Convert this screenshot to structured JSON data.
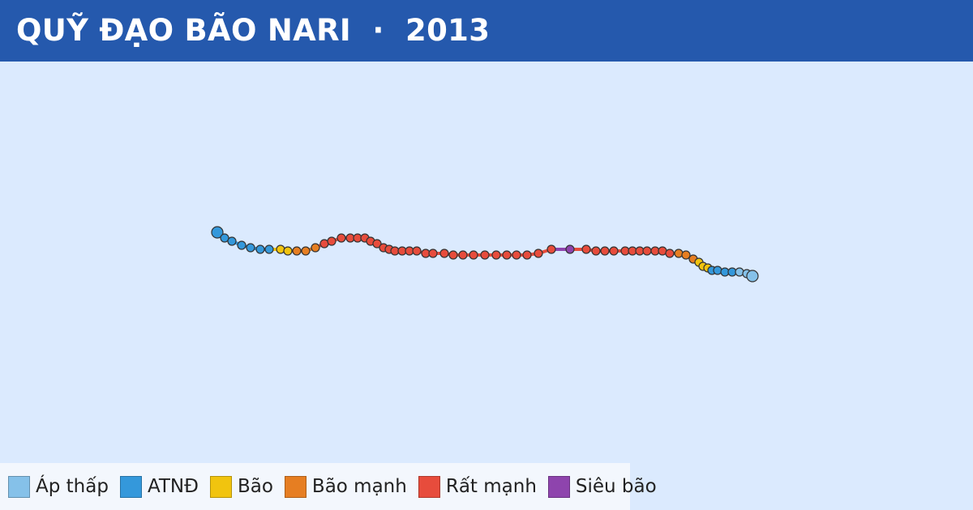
{
  "header": {
    "title": "QUỸ ĐẠO BÃO NARI  ·  2013",
    "background": "#2559ad"
  },
  "map": {
    "background": "#dbeafe",
    "track_colors": {
      "depression": "#85c1e9",
      "tropical_storm": "#3498db",
      "storm": "#f1c40f",
      "strong_storm": "#e67e22",
      "very_strong": "#e74c3c",
      "super_typhoon": "#8e44ad"
    },
    "track_points": [
      {
        "c": "tropical_storm"
      },
      {
        "c": "tropical_storm"
      },
      {
        "c": "tropical_storm"
      },
      {
        "c": "tropical_storm"
      },
      {
        "c": "tropical_storm"
      },
      {
        "c": "tropical_storm"
      },
      {
        "c": "tropical_storm"
      },
      {
        "c": "storm"
      },
      {
        "c": "storm"
      },
      {
        "c": "strong_storm"
      },
      {
        "c": "strong_storm"
      },
      {
        "c": "strong_storm"
      },
      {
        "c": "very_strong"
      },
      {
        "c": "very_strong"
      },
      {
        "c": "very_strong"
      },
      {
        "c": "very_strong"
      },
      {
        "c": "very_strong"
      },
      {
        "c": "very_strong"
      },
      {
        "c": "very_strong"
      },
      {
        "c": "very_strong"
      },
      {
        "c": "very_strong"
      },
      {
        "c": "very_strong"
      },
      {
        "c": "very_strong"
      },
      {
        "c": "very_strong"
      },
      {
        "c": "very_strong"
      },
      {
        "c": "very_strong"
      },
      {
        "c": "very_strong"
      },
      {
        "c": "very_strong"
      },
      {
        "c": "very_strong"
      },
      {
        "c": "very_strong"
      },
      {
        "c": "very_strong"
      },
      {
        "c": "very_strong"
      },
      {
        "c": "very_strong"
      },
      {
        "c": "very_strong"
      },
      {
        "c": "very_strong"
      },
      {
        "c": "very_strong"
      },
      {
        "c": "very_strong"
      },
      {
        "c": "very_strong"
      },
      {
        "c": "very_strong"
      },
      {
        "c": "super_typhoon"
      },
      {
        "c": "very_strong"
      },
      {
        "c": "very_strong"
      },
      {
        "c": "very_strong"
      },
      {
        "c": "very_strong"
      },
      {
        "c": "very_strong"
      },
      {
        "c": "very_strong"
      },
      {
        "c": "very_strong"
      },
      {
        "c": "very_strong"
      },
      {
        "c": "very_strong"
      },
      {
        "c": "very_strong"
      },
      {
        "c": "very_strong"
      },
      {
        "c": "strong_storm"
      },
      {
        "c": "strong_storm"
      },
      {
        "c": "strong_storm"
      },
      {
        "c": "storm"
      },
      {
        "c": "storm"
      },
      {
        "c": "storm"
      },
      {
        "c": "tropical_storm"
      },
      {
        "c": "tropical_storm"
      },
      {
        "c": "tropical_storm"
      },
      {
        "c": "tropical_storm"
      },
      {
        "c": "depression"
      },
      {
        "c": "depression"
      },
      {
        "c": "depression"
      }
    ]
  },
  "legend": {
    "items": [
      {
        "label": "Áp thấp",
        "color": "#85c1e9"
      },
      {
        "label": "ATNĐ",
        "color": "#3498db"
      },
      {
        "label": "Bão",
        "color": "#f1c40f"
      },
      {
        "label": "Bão mạnh",
        "color": "#e67e22"
      },
      {
        "label": "Rất mạnh",
        "color": "#e74c3c"
      },
      {
        "label": "Siêu bão",
        "color": "#8e44ad"
      }
    ]
  }
}
